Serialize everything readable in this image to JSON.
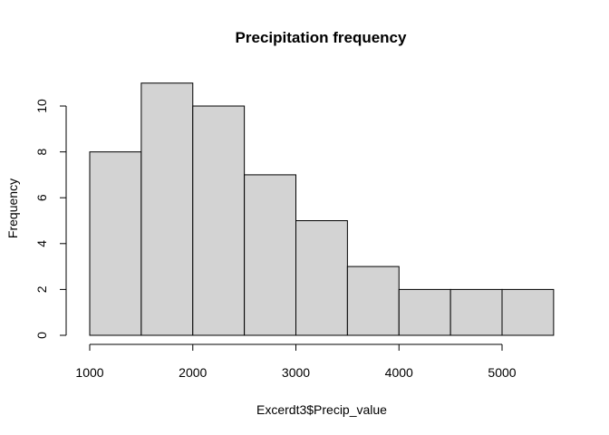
{
  "chart_data": {
    "type": "bar",
    "title": "Precipitation frequency",
    "xlabel": "Excerdt3$Precip_value",
    "ylabel": "Frequency",
    "bins": [
      {
        "start": 1000,
        "end": 1500,
        "value": 8
      },
      {
        "start": 1500,
        "end": 2000,
        "value": 11
      },
      {
        "start": 2000,
        "end": 2500,
        "value": 10
      },
      {
        "start": 2500,
        "end": 3000,
        "value": 7
      },
      {
        "start": 3000,
        "end": 3500,
        "value": 5
      },
      {
        "start": 3500,
        "end": 4000,
        "value": 3
      },
      {
        "start": 4000,
        "end": 4500,
        "value": 2
      },
      {
        "start": 4500,
        "end": 5000,
        "value": 2
      },
      {
        "start": 5000,
        "end": 5500,
        "value": 2
      }
    ],
    "xlim": [
      1000,
      5500
    ],
    "ylim": [
      0,
      11
    ],
    "x_ticks": [
      1000,
      2000,
      3000,
      4000,
      5000
    ],
    "y_ticks": [
      0,
      2,
      4,
      6,
      8,
      10
    ],
    "grid": false,
    "bar_fill": "#d3d3d3",
    "bar_stroke": "#000000"
  }
}
